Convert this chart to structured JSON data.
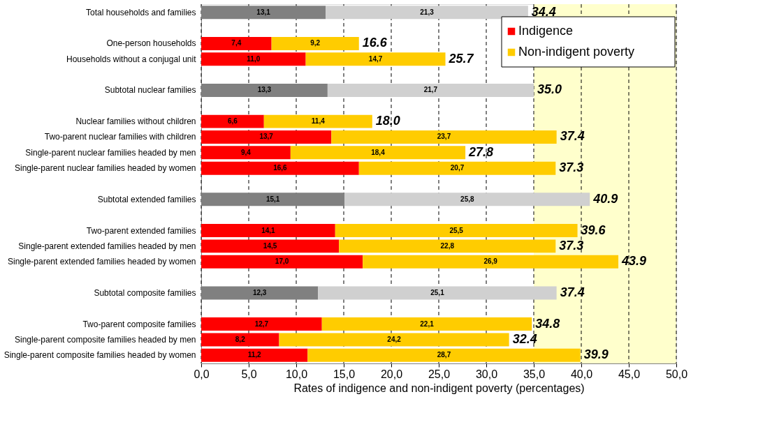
{
  "chart_data": {
    "type": "bar",
    "orientation": "horizontal",
    "stacked": true,
    "xlabel": "Rates of indigence and non-indigent poverty (percentages)",
    "categories": [
      "Total households and families",
      null,
      "One-person households",
      "Households without a conjugal unit",
      null,
      "Subtotal nuclear families",
      null,
      "Nuclear families without children",
      "Two-parent nuclear families with children",
      "Single-parent nuclear families headed by men",
      "Single-parent nuclear families headed by women",
      null,
      "Subtotal extended families",
      null,
      "Two-parent extended families",
      "Single-parent extended families headed by men",
      "Single-parent extended families headed by women",
      null,
      "Subtotal composite families",
      null,
      "Two-parent composite families",
      "Single-parent composite families headed by men",
      "Single-parent composite families headed by women"
    ],
    "series": [
      {
        "name": "Indigence",
        "color": "#ff0000",
        "values": [
          13.1,
          null,
          7.4,
          11.0,
          null,
          13.3,
          null,
          6.6,
          13.7,
          9.4,
          16.6,
          null,
          15.1,
          null,
          14.1,
          14.5,
          17.0,
          null,
          12.3,
          null,
          12.7,
          8.2,
          11.2
        ],
        "value_labels": [
          "13,1",
          null,
          "7,4",
          "11,0",
          null,
          "13,3",
          null,
          "6,6",
          "13,7",
          "9,4",
          "16,6",
          null,
          "15,1",
          null,
          "14,1",
          "14,5",
          "17,0",
          null,
          "12,3",
          null,
          "12,7",
          "8,2",
          "11,2"
        ],
        "colors": [
          "#808080",
          null,
          "#ff0000",
          "#ff0000",
          null,
          "#808080",
          null,
          "#ff0000",
          "#ff0000",
          "#ff0000",
          "#ff0000",
          null,
          "#808080",
          null,
          "#ff0000",
          "#ff0000",
          "#ff0000",
          null,
          "#808080",
          null,
          "#ff0000",
          "#ff0000",
          "#ff0000"
        ]
      },
      {
        "name": "Non-indigent poverty",
        "color": "#ffcc00",
        "values": [
          21.3,
          null,
          9.2,
          14.7,
          null,
          21.7,
          null,
          11.4,
          23.7,
          18.4,
          20.7,
          null,
          25.8,
          null,
          25.5,
          22.8,
          26.9,
          null,
          25.1,
          null,
          22.1,
          24.2,
          28.7
        ],
        "value_labels": [
          "21,3",
          null,
          "9,2",
          "14,7",
          null,
          "21,7",
          null,
          "11,4",
          "23,7",
          "18,4",
          "20,7",
          null,
          "25,8",
          null,
          "25,5",
          "22,8",
          "26,9",
          null,
          "25,1",
          null,
          "22,1",
          "24,2",
          "28,7"
        ],
        "colors": [
          "#d0d0d0",
          null,
          "#ffcc00",
          "#ffcc00",
          null,
          "#d0d0d0",
          null,
          "#ffcc00",
          "#ffcc00",
          "#ffcc00",
          "#ffcc00",
          null,
          "#d0d0d0",
          null,
          "#ffcc00",
          "#ffcc00",
          "#ffcc00",
          null,
          "#d0d0d0",
          null,
          "#ffcc00",
          "#ffcc00",
          "#ffcc00"
        ]
      }
    ],
    "totals": [
      "34.4",
      null,
      "16.6",
      "25.7",
      null,
      "35.0",
      null,
      "18.0",
      "37.4",
      "27.8",
      "37.3",
      null,
      "40.9",
      null,
      "39.6",
      "37.3",
      "43.9",
      null,
      "37.4",
      null,
      "34.8",
      "32.4",
      "39.9"
    ],
    "xlim": [
      0,
      50
    ],
    "xticks": [
      {
        "value": 0,
        "label": "0,0"
      },
      {
        "value": 5,
        "label": "5,0"
      },
      {
        "value": 10,
        "label": "10,0"
      },
      {
        "value": 15,
        "label": "15,0"
      },
      {
        "value": 20,
        "label": "20,0"
      },
      {
        "value": 25,
        "label": "25,0"
      },
      {
        "value": 30,
        "label": "30,0"
      },
      {
        "value": 35,
        "label": "35,0"
      },
      {
        "value": 40,
        "label": "40,0"
      },
      {
        "value": 45,
        "label": "45,0"
      },
      {
        "value": 50,
        "label": "50,0"
      }
    ],
    "bands": [
      {
        "axis": "x",
        "from": 35,
        "to": 50,
        "color": "#ffffcc"
      }
    ],
    "grid": "x",
    "line_style": "dashed",
    "legend": "top right"
  }
}
